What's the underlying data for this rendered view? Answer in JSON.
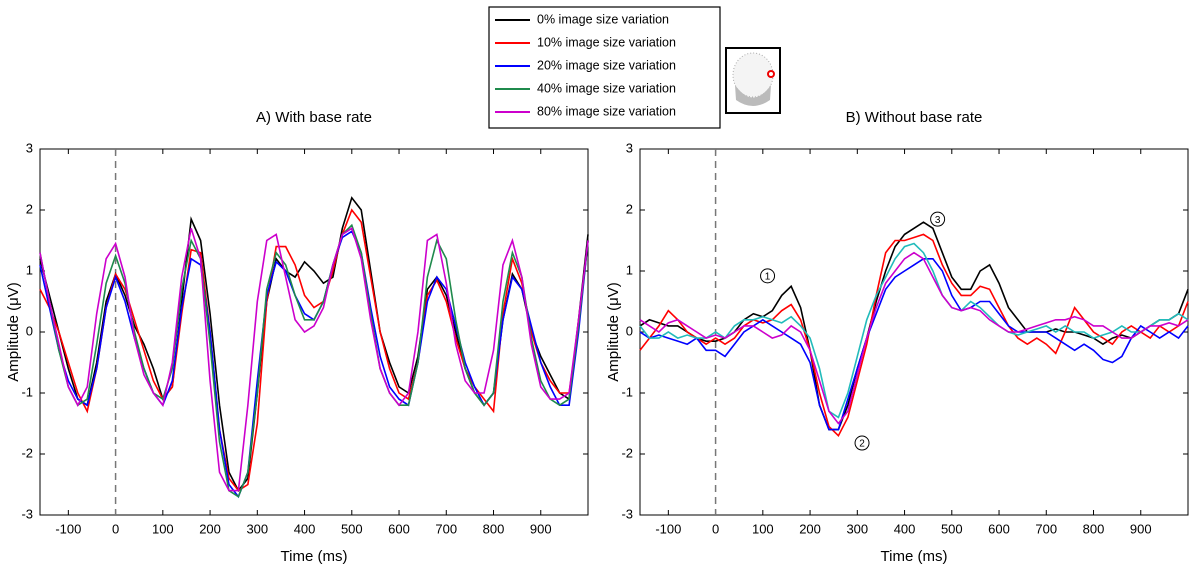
{
  "chart_data": [
    {
      "type": "line",
      "title": "A) With base rate",
      "x_label": "Time (ms)",
      "y_label": "Amplitude (μV)",
      "xlim": [
        -160,
        1000
      ],
      "xticks": [
        -100,
        0,
        100,
        200,
        300,
        400,
        500,
        600,
        700,
        800,
        900
      ],
      "ylim": [
        -3,
        3
      ],
      "yticks": [
        -3,
        -2,
        -1,
        0,
        1,
        2,
        3
      ],
      "vline": 0,
      "grid": false,
      "x": [
        -160,
        -140,
        -120,
        -100,
        -80,
        -60,
        -40,
        -20,
        0,
        20,
        40,
        60,
        80,
        100,
        120,
        140,
        160,
        180,
        200,
        220,
        240,
        260,
        280,
        300,
        320,
        340,
        360,
        380,
        400,
        420,
        440,
        460,
        480,
        500,
        520,
        540,
        560,
        580,
        600,
        620,
        640,
        660,
        680,
        700,
        720,
        740,
        760,
        780,
        800,
        820,
        840,
        860,
        880,
        900,
        920,
        940,
        960,
        980,
        1000
      ],
      "series": [
        {
          "name": "0% image size variation",
          "color": "#000000",
          "values": [
            1.2,
            0.6,
            0.0,
            -0.6,
            -1.1,
            -1.2,
            -0.5,
            0.5,
            0.95,
            0.6,
            0.1,
            -0.2,
            -0.6,
            -1.1,
            -0.9,
            0.5,
            1.85,
            1.5,
            0.3,
            -1.2,
            -2.3,
            -2.6,
            -2.4,
            -1.0,
            0.5,
            1.2,
            1.0,
            0.9,
            1.15,
            1.0,
            0.8,
            0.9,
            1.7,
            2.2,
            2.0,
            1.0,
            0.0,
            -0.5,
            -0.9,
            -1.0,
            -0.4,
            0.7,
            0.9,
            0.6,
            0.0,
            -0.6,
            -1.0,
            -1.2,
            -1.0,
            0.2,
            0.95,
            0.7,
            0.0,
            -0.4,
            -0.7,
            -1.0,
            -1.1,
            0.2,
            1.6
          ]
        },
        {
          "name": "10% image size variation",
          "color": "#ff0000",
          "values": [
            0.7,
            0.4,
            0.0,
            -0.5,
            -1.0,
            -1.3,
            -0.6,
            0.4,
            0.95,
            0.7,
            0.2,
            -0.3,
            -0.8,
            -1.1,
            -0.9,
            0.3,
            1.35,
            1.3,
            0.0,
            -1.6,
            -2.4,
            -2.6,
            -2.5,
            -1.5,
            0.5,
            1.4,
            1.4,
            1.1,
            0.6,
            0.4,
            0.5,
            1.0,
            1.6,
            2.0,
            1.8,
            0.9,
            0.0,
            -0.6,
            -1.0,
            -1.1,
            -0.5,
            0.6,
            0.85,
            0.5,
            -0.1,
            -0.6,
            -0.9,
            -1.1,
            -1.3,
            0.3,
            1.2,
            0.8,
            0.0,
            -0.5,
            -0.8,
            -1.0,
            -1.0,
            0.1,
            1.5
          ]
        },
        {
          "name": "20% image size variation",
          "color": "#0000ff",
          "values": [
            1.1,
            0.4,
            -0.3,
            -0.8,
            -1.1,
            -1.2,
            -0.6,
            0.4,
            0.9,
            0.5,
            -0.1,
            -0.6,
            -1.0,
            -1.2,
            -0.8,
            0.4,
            1.2,
            1.1,
            0.0,
            -1.6,
            -2.5,
            -2.7,
            -2.3,
            -0.8,
            0.6,
            1.15,
            1.0,
            0.6,
            0.3,
            0.2,
            0.5,
            1.1,
            1.55,
            1.65,
            1.3,
            0.4,
            -0.4,
            -0.9,
            -1.1,
            -1.2,
            -0.5,
            0.5,
            0.9,
            0.7,
            0.1,
            -0.5,
            -0.9,
            -1.2,
            -1.0,
            0.2,
            0.9,
            0.7,
            0.1,
            -0.5,
            -0.9,
            -1.2,
            -1.2,
            0.0,
            1.5
          ]
        },
        {
          "name": "40% image size variation",
          "color": "#1f8a4c",
          "values": [
            1.3,
            0.5,
            -0.3,
            -0.9,
            -1.2,
            -1.1,
            -0.2,
            0.8,
            1.25,
            0.8,
            0.0,
            -0.6,
            -1.0,
            -1.1,
            -0.6,
            0.7,
            1.5,
            1.2,
            -0.2,
            -1.8,
            -2.6,
            -2.7,
            -2.3,
            -1.0,
            0.7,
            1.3,
            1.1,
            0.6,
            0.2,
            0.2,
            0.5,
            1.1,
            1.6,
            1.75,
            1.3,
            0.3,
            -0.6,
            -1.0,
            -1.2,
            -1.2,
            -0.5,
            0.9,
            1.5,
            1.2,
            0.2,
            -0.6,
            -1.0,
            -1.2,
            -1.0,
            0.5,
            1.3,
            0.9,
            -0.1,
            -0.8,
            -1.1,
            -1.2,
            -1.1,
            0.1,
            1.5
          ]
        },
        {
          "name": "80% image size variation",
          "color": "#cc00cc",
          "values": [
            1.3,
            0.5,
            -0.2,
            -0.9,
            -1.2,
            -0.9,
            0.3,
            1.2,
            1.45,
            0.9,
            -0.1,
            -0.7,
            -1.0,
            -1.2,
            -0.5,
            0.9,
            1.7,
            1.2,
            -0.8,
            -2.3,
            -2.6,
            -2.6,
            -1.2,
            0.5,
            1.5,
            1.6,
            0.9,
            0.2,
            0.0,
            0.1,
            0.4,
            1.1,
            1.6,
            1.7,
            1.2,
            0.2,
            -0.6,
            -1.0,
            -1.2,
            -1.0,
            0.0,
            1.5,
            1.6,
            0.8,
            -0.2,
            -0.8,
            -1.0,
            -1.0,
            -0.3,
            1.1,
            1.5,
            0.9,
            -0.2,
            -0.9,
            -1.1,
            -1.1,
            -1.0,
            0.2,
            1.5
          ]
        }
      ]
    },
    {
      "type": "line",
      "title": "B) Without base rate",
      "x_label": "Time (ms)",
      "y_label": "Amplitude (μV)",
      "xlim": [
        -160,
        1000
      ],
      "xticks": [
        -100,
        0,
        100,
        200,
        300,
        400,
        500,
        600,
        700,
        800,
        900
      ],
      "ylim": [
        -3,
        3
      ],
      "yticks": [
        -3,
        -2,
        -1,
        0,
        1,
        2,
        3
      ],
      "vline": 0,
      "grid": false,
      "x": [
        -160,
        -140,
        -120,
        -100,
        -80,
        -60,
        -40,
        -20,
        0,
        20,
        40,
        60,
        80,
        100,
        120,
        140,
        160,
        180,
        200,
        220,
        240,
        260,
        280,
        300,
        320,
        340,
        360,
        380,
        400,
        420,
        440,
        460,
        480,
        500,
        520,
        540,
        560,
        580,
        600,
        620,
        640,
        660,
        680,
        700,
        720,
        740,
        760,
        780,
        800,
        820,
        840,
        860,
        880,
        900,
        920,
        940,
        960,
        980,
        1000
      ],
      "series": [
        {
          "color": "#000000",
          "values": [
            0.1,
            0.2,
            0.15,
            0.1,
            0.1,
            0.0,
            -0.1,
            -0.15,
            -0.15,
            -0.1,
            0.0,
            0.2,
            0.3,
            0.25,
            0.35,
            0.6,
            0.75,
            0.4,
            -0.3,
            -1.2,
            -1.6,
            -1.6,
            -1.2,
            -0.6,
            -0.1,
            0.5,
            1.0,
            1.4,
            1.6,
            1.7,
            1.8,
            1.7,
            1.3,
            0.9,
            0.7,
            0.7,
            1.0,
            1.1,
            0.8,
            0.4,
            0.2,
            0.0,
            0.0,
            0.0,
            0.05,
            0.0,
            0.0,
            -0.05,
            -0.1,
            -0.2,
            -0.1,
            -0.05,
            -0.1,
            0.0,
            0.1,
            0.2,
            0.2,
            0.3,
            0.7
          ]
        },
        {
          "color": "#ff0000",
          "values": [
            -0.3,
            -0.1,
            0.1,
            0.35,
            0.2,
            0.0,
            -0.1,
            -0.2,
            -0.1,
            -0.2,
            -0.1,
            0.1,
            0.2,
            0.15,
            0.2,
            0.35,
            0.45,
            0.2,
            -0.3,
            -1.0,
            -1.55,
            -1.7,
            -1.4,
            -0.8,
            -0.2,
            0.6,
            1.3,
            1.5,
            1.5,
            1.55,
            1.6,
            1.5,
            1.1,
            0.8,
            0.6,
            0.6,
            0.75,
            0.7,
            0.4,
            0.1,
            -0.1,
            -0.2,
            -0.1,
            -0.2,
            -0.35,
            0.0,
            0.4,
            0.2,
            0.0,
            -0.1,
            -0.2,
            0.0,
            0.1,
            0.0,
            -0.1,
            0.1,
            0.0,
            0.1,
            0.5
          ]
        },
        {
          "color": "#0000ff",
          "values": [
            0.0,
            -0.1,
            -0.05,
            -0.1,
            -0.15,
            -0.2,
            -0.1,
            -0.3,
            -0.3,
            -0.4,
            -0.2,
            0.0,
            0.1,
            0.2,
            0.1,
            0.0,
            -0.1,
            -0.2,
            -0.5,
            -1.2,
            -1.6,
            -1.6,
            -1.1,
            -0.6,
            -0.1,
            0.3,
            0.7,
            0.9,
            1.0,
            1.1,
            1.2,
            1.2,
            1.0,
            0.6,
            0.35,
            0.4,
            0.5,
            0.5,
            0.3,
            0.1,
            0.0,
            0.0,
            0.0,
            0.0,
            -0.1,
            -0.2,
            -0.3,
            -0.2,
            -0.3,
            -0.45,
            -0.5,
            -0.4,
            -0.1,
            0.1,
            0.0,
            -0.1,
            0.0,
            -0.1,
            0.1
          ]
        },
        {
          "color": "#22bbbb",
          "values": [
            0.1,
            -0.1,
            -0.1,
            0.0,
            -0.1,
            -0.05,
            -0.1,
            -0.1,
            0.0,
            -0.1,
            0.1,
            0.2,
            0.2,
            0.25,
            0.2,
            0.15,
            0.25,
            0.1,
            -0.1,
            -0.6,
            -1.3,
            -1.4,
            -1.0,
            -0.4,
            0.2,
            0.6,
            0.9,
            1.2,
            1.4,
            1.45,
            1.3,
            1.0,
            0.6,
            0.4,
            0.35,
            0.5,
            0.4,
            0.25,
            0.1,
            0.0,
            -0.05,
            0.0,
            0.05,
            0.1,
            0.0,
            0.1,
            0.0,
            0.0,
            -0.1,
            -0.05,
            0.0,
            0.1,
            0.0,
            0.0,
            0.1,
            0.2,
            0.2,
            0.3,
            0.2
          ]
        },
        {
          "color": "#cc00cc",
          "values": [
            0.2,
            0.1,
            0.0,
            0.15,
            0.2,
            0.1,
            0.0,
            -0.1,
            -0.05,
            -0.1,
            0.0,
            0.1,
            0.1,
            0.0,
            -0.1,
            -0.05,
            0.1,
            0.0,
            -0.3,
            -0.8,
            -1.3,
            -1.5,
            -1.3,
            -0.7,
            -0.1,
            0.4,
            0.8,
            1.0,
            1.2,
            1.3,
            1.2,
            0.9,
            0.6,
            0.4,
            0.35,
            0.4,
            0.35,
            0.2,
            0.1,
            0.0,
            0.0,
            0.05,
            0.1,
            0.15,
            0.2,
            0.2,
            0.25,
            0.2,
            0.1,
            0.1,
            0.0,
            -0.1,
            -0.1,
            0.0,
            0.1,
            0.1,
            0.15,
            0.1,
            0.2
          ]
        }
      ],
      "annotations": [
        {
          "text": "1",
          "x": 110,
          "y": 0.92
        },
        {
          "text": "2",
          "x": 310,
          "y": -1.82
        },
        {
          "text": "3",
          "x": 470,
          "y": 1.85
        }
      ]
    }
  ]
}
